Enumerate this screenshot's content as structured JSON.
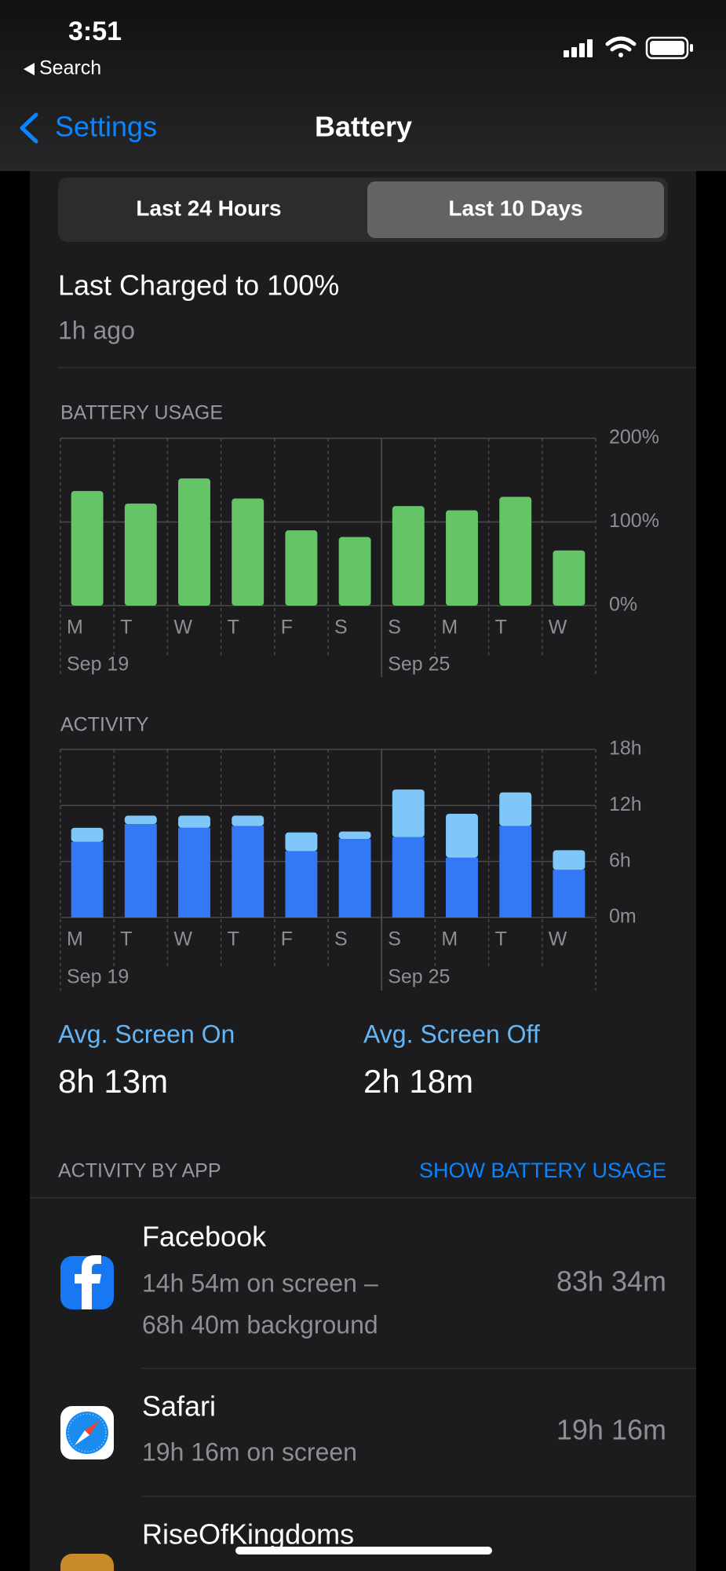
{
  "status_bar": {
    "time": "3:51",
    "back_link": "Search"
  },
  "nav": {
    "back": "Settings",
    "title": "Battery"
  },
  "segments": [
    "Last 24 Hours",
    "Last 10 Days"
  ],
  "last_charged": {
    "title": "Last Charged to 100%",
    "subtitle": "1h ago"
  },
  "chart_data": [
    {
      "type": "bar",
      "title": "BATTERY USAGE",
      "categories": [
        "M",
        "T",
        "W",
        "T",
        "F",
        "S",
        "S",
        "M",
        "T",
        "W"
      ],
      "date_labels": [
        "Sep 19",
        null,
        null,
        null,
        null,
        null,
        "Sep 25",
        null,
        null,
        null
      ],
      "values": [
        137,
        122,
        152,
        128,
        90,
        82,
        119,
        114,
        130,
        66
      ],
      "color": "#65c466",
      "ylim": [
        0,
        200
      ],
      "yticks": [
        {
          "value": 0,
          "label": "0%"
        },
        {
          "value": 100,
          "label": "100%"
        },
        {
          "value": 200,
          "label": "200%"
        }
      ],
      "grid": true
    },
    {
      "type": "stacked_bar",
      "title": "ACTIVITY",
      "categories": [
        "M",
        "T",
        "W",
        "T",
        "F",
        "S",
        "S",
        "M",
        "T",
        "W"
      ],
      "date_labels": [
        "Sep 19",
        null,
        null,
        null,
        null,
        null,
        "Sep 25",
        null,
        null,
        null
      ],
      "series": [
        {
          "color": "#3478f6",
          "values": [
            8.1,
            10.0,
            9.6,
            9.8,
            7.1,
            8.4,
            8.6,
            6.4,
            9.8,
            5.1
          ]
        },
        {
          "color": "#7fc6f9",
          "values": [
            1.5,
            0.9,
            1.3,
            1.1,
            2.0,
            0.8,
            5.1,
            4.7,
            3.6,
            2.1
          ]
        }
      ],
      "ylim": [
        0,
        18
      ],
      "yticks": [
        {
          "value": 0,
          "label": "0m"
        },
        {
          "value": 6,
          "label": "6h"
        },
        {
          "value": 12,
          "label": "12h"
        },
        {
          "value": 18,
          "label": "18h"
        }
      ],
      "grid": true
    }
  ],
  "averages": [
    {
      "label": "Avg. Screen On",
      "value": "8h 13m"
    },
    {
      "label": "Avg. Screen Off",
      "value": "2h 18m"
    }
  ],
  "activity_by_app": {
    "title": "ACTIVITY BY APP",
    "action": "SHOW BATTERY USAGE",
    "apps": [
      {
        "name": "Facebook",
        "details": [
          "14h 54m on screen –",
          "68h 40m background"
        ],
        "usage": "83h 34m"
      },
      {
        "name": "Safari",
        "details": [
          "19h 16m on screen"
        ],
        "usage": "19h 16m"
      },
      {
        "name": "RiseOfKingdoms"
      }
    ]
  }
}
